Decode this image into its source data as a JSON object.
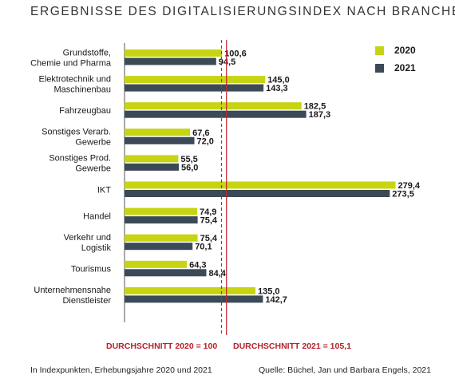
{
  "title": "ERGEBNISSE DES DIGITALISIERUNGSINDEX NACH BRANCHEN",
  "colors": {
    "s2020": "#c6d412",
    "s2021": "#3b4a56",
    "avg": "#c0272d"
  },
  "chart_data": {
    "type": "bar",
    "orientation": "horizontal",
    "categories": [
      [
        "Grundstoffe,",
        "Chemie und Pharma"
      ],
      [
        "Elektrotechnik und",
        "Maschinenbau"
      ],
      [
        "Fahrzeugbau"
      ],
      [
        "Sonstiges Verarb.",
        "Gewerbe"
      ],
      [
        "Sonstiges Prod.",
        "Gewerbe"
      ],
      [
        "IKT"
      ],
      [
        "Handel"
      ],
      [
        "Verkehr und",
        "Logistik"
      ],
      [
        "Tourismus"
      ],
      [
        "Unternehmensnahe",
        "Dienstleister"
      ]
    ],
    "series": [
      {
        "name": "2020",
        "values": [
          100.6,
          145.0,
          182.5,
          67.6,
          55.5,
          279.4,
          74.9,
          75.4,
          64.3,
          135.0
        ],
        "labels": [
          "100,6",
          "145,0",
          "182,5",
          "67,6",
          "55,5",
          "279,4",
          "74,9",
          "75,4",
          "64,3",
          "135,0"
        ]
      },
      {
        "name": "2021",
        "values": [
          94.5,
          143.3,
          187.3,
          72.0,
          56.0,
          273.5,
          75.4,
          70.1,
          84.4,
          142.7
        ],
        "labels": [
          "94,5",
          "143,3",
          "187,3",
          "72,0",
          "56,0",
          "273,5",
          "75,4",
          "70,1",
          "84,4",
          "142,7"
        ]
      }
    ],
    "reference_lines": [
      {
        "label": "DURCHSCHNITT 2020 = 100",
        "value": 100,
        "style": "dashed"
      },
      {
        "label": "DURCHSCHNITT 2021 = 105,1",
        "value": 105.1,
        "style": "solid"
      }
    ],
    "xlim": [
      0,
      300
    ],
    "legend": "top-right"
  },
  "footnote_left": "In Indexpunkten, Erhebungsjahre 2020 und 2021",
  "footnote_right": "Quelle: Büchel, Jan und Barbara Engels, 2021"
}
